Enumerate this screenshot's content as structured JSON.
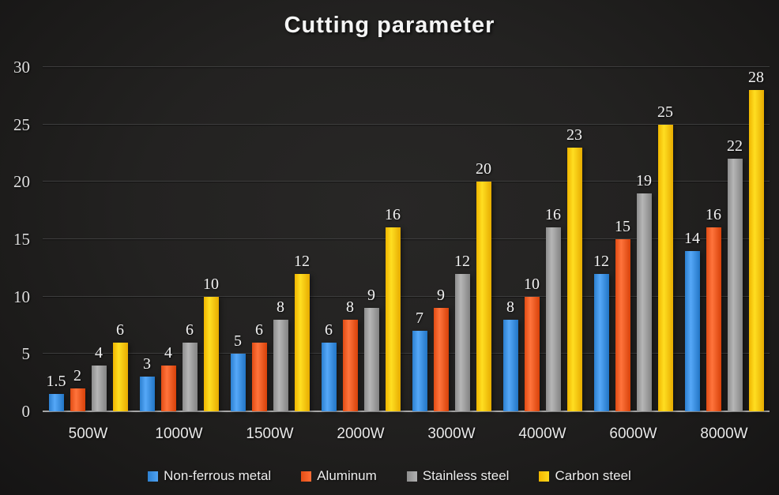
{
  "title": "Cutting parameter",
  "chart_data": {
    "type": "bar",
    "title": "Cutting parameter",
    "categories": [
      "500W",
      "1000W",
      "1500W",
      "2000W",
      "3000W",
      "4000W",
      "6000W",
      "8000W"
    ],
    "series": [
      {
        "name": "Non-ferrous metal",
        "color": "#3b8ede",
        "values": [
          1.5,
          3,
          5,
          6,
          7,
          8,
          12,
          14
        ]
      },
      {
        "name": "Aluminum",
        "color": "#f05a22",
        "values": [
          2,
          4,
          6,
          8,
          9,
          10,
          15,
          16
        ]
      },
      {
        "name": "Stainless steel",
        "color": "#9c9c9c",
        "values": [
          4,
          6,
          8,
          9,
          12,
          16,
          19,
          22
        ]
      },
      {
        "name": "Carbon steel",
        "color": "#ffc407",
        "values": [
          6,
          10,
          12,
          16,
          20,
          23,
          25,
          28
        ]
      }
    ],
    "ylim": [
      0,
      30
    ],
    "yticks": [
      0,
      5,
      10,
      15,
      20,
      25,
      30
    ],
    "grid": "horizontal",
    "legend_position": "bottom",
    "xlabel": "",
    "ylabel": ""
  },
  "colors": {
    "background": "#232221",
    "gridline": "#3e3e3e",
    "axis_line": "#a6a6a6",
    "text": "#ececec"
  }
}
